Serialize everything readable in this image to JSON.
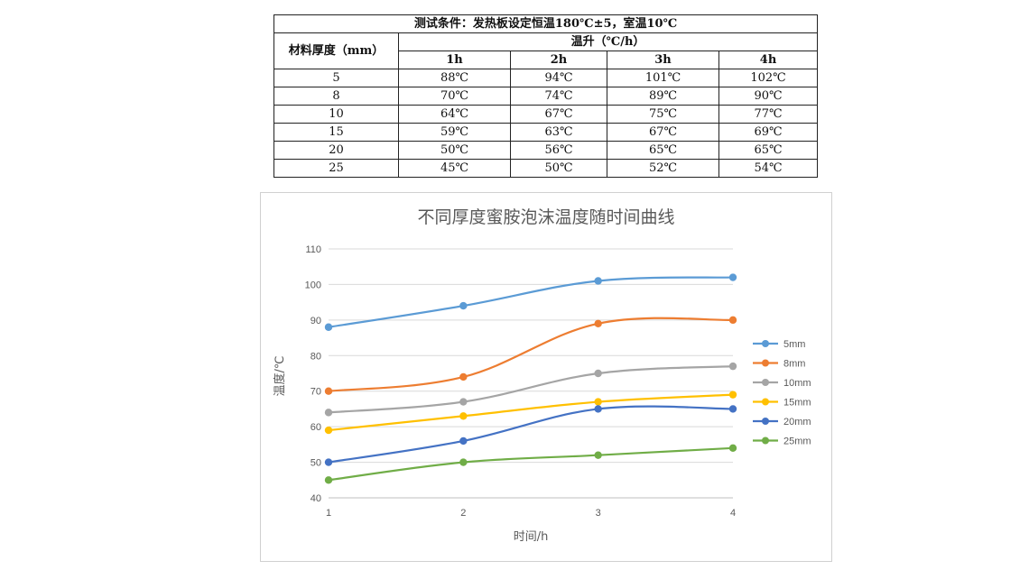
{
  "table": {
    "title": "测试条件：发热板设定恒温180℃±5，室温10℃",
    "row_header": "材料厚度（mm）",
    "group_header": "温升（℃/h）",
    "col_headers": [
      "1h",
      "2h",
      "3h",
      "4h"
    ],
    "rows": [
      {
        "thickness": "5",
        "values": [
          "88℃",
          "94℃",
          "101℃",
          "102℃"
        ]
      },
      {
        "thickness": "8",
        "values": [
          "70℃",
          "74℃",
          "89℃",
          "90℃"
        ]
      },
      {
        "thickness": "10",
        "values": [
          "64℃",
          "67℃",
          "75℃",
          "77℃"
        ]
      },
      {
        "thickness": "15",
        "values": [
          "59℃",
          "63℃",
          "67℃",
          "69℃"
        ]
      },
      {
        "thickness": "20",
        "values": [
          "50℃",
          "56℃",
          "65℃",
          "65℃"
        ]
      },
      {
        "thickness": "25",
        "values": [
          "45℃",
          "50℃",
          "52℃",
          "54℃"
        ]
      }
    ]
  },
  "chart_data": {
    "type": "line",
    "title": "不同厚度蜜胺泡沫温度随时间曲线",
    "xlabel": "时间/h",
    "ylabel": "温度/℃",
    "x": [
      1,
      2,
      3,
      4
    ],
    "ylim": [
      40,
      110
    ],
    "yticks": [
      40,
      50,
      60,
      70,
      80,
      90,
      100,
      110
    ],
    "grid": true,
    "smooth": true,
    "legend_position": "right",
    "series": [
      {
        "name": "5mm",
        "color": "#5b9bd5",
        "values": [
          88,
          94,
          101,
          102
        ]
      },
      {
        "name": "8mm",
        "color": "#ed7d31",
        "values": [
          70,
          74,
          89,
          90
        ]
      },
      {
        "name": "10mm",
        "color": "#a5a5a5",
        "values": [
          64,
          67,
          75,
          77
        ]
      },
      {
        "name": "15mm",
        "color": "#ffc000",
        "values": [
          59,
          63,
          67,
          69
        ]
      },
      {
        "name": "20mm",
        "color": "#4472c4",
        "values": [
          50,
          56,
          65,
          65
        ]
      },
      {
        "name": "25mm",
        "color": "#70ad47",
        "values": [
          45,
          50,
          52,
          54
        ]
      }
    ]
  }
}
